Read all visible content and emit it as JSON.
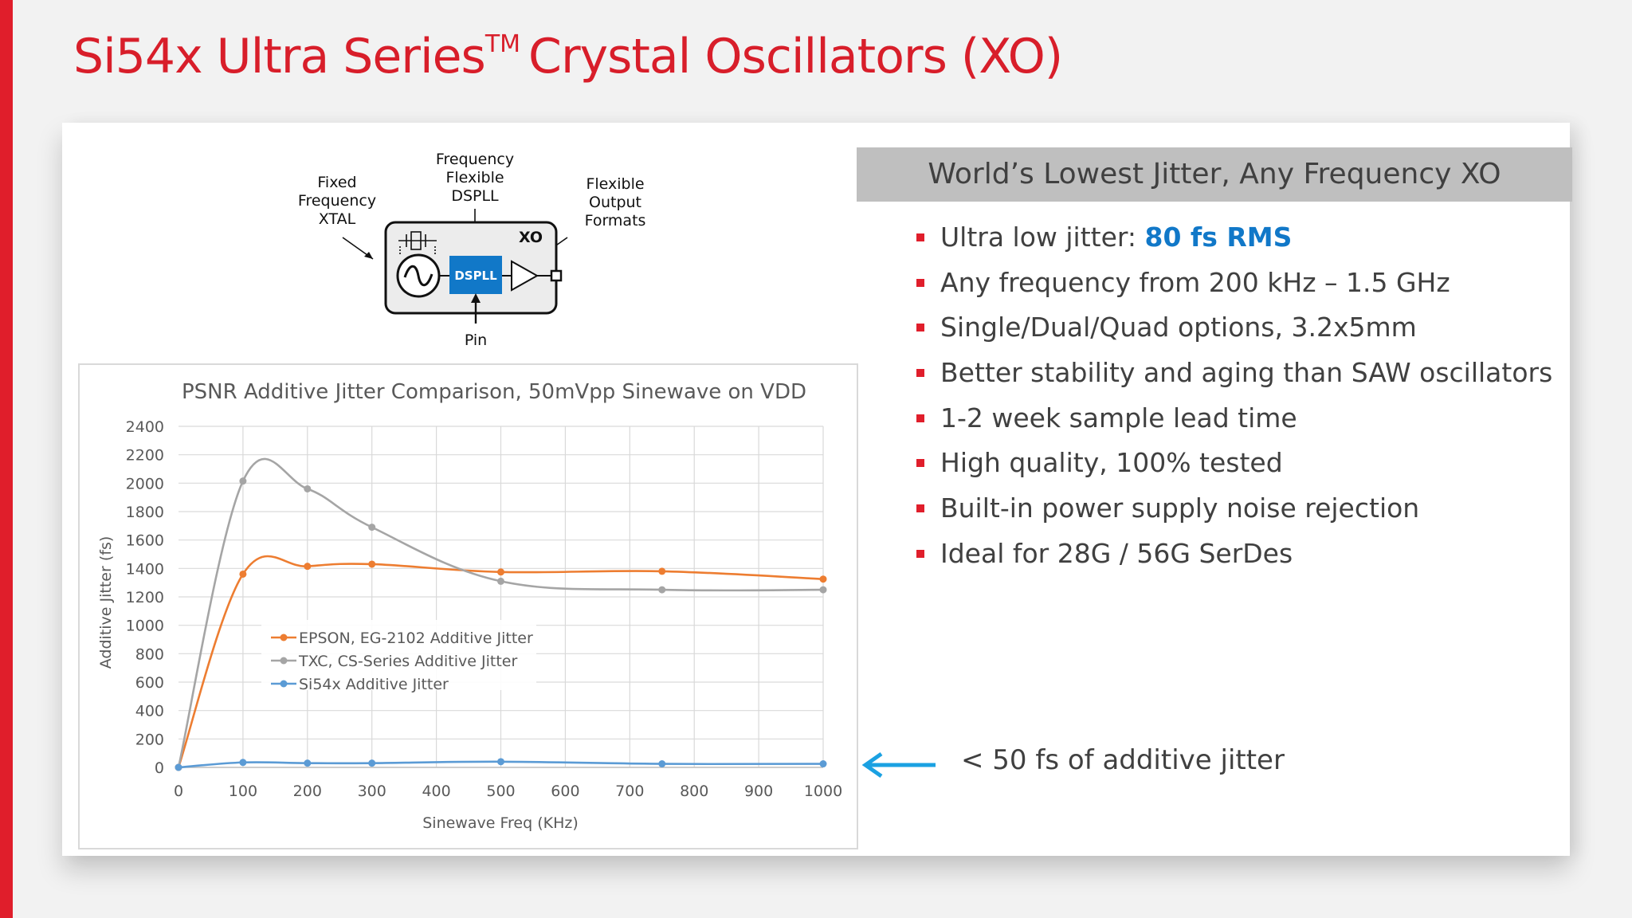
{
  "slide": {
    "title_main": "Si54x Ultra Series",
    "title_tm": "TM",
    "title_rest": "Crystal Oscillators (XO)"
  },
  "block_diagram": {
    "label_fixed": "Fixed\nFrequency\nXTAL",
    "label_dspll_top": "Frequency\nFlexible\nDSPLL",
    "label_output": "Flexible\nOutput\nFormats",
    "label_pin": "Pin",
    "label_xo": "XO",
    "label_dspll": "DSPLL"
  },
  "chart_data": {
    "type": "line",
    "title": "PSNR Additive Jitter Comparison, 50mVpp Sinewave on VDD",
    "xlabel": "Sinewave Freq (KHz)",
    "ylabel": "Additive Jitter (fs)",
    "xlim": [
      0,
      1000
    ],
    "ylim": [
      0,
      2400
    ],
    "x_ticks": [
      0,
      100,
      200,
      300,
      400,
      500,
      600,
      700,
      800,
      900,
      1000
    ],
    "y_ticks": [
      0,
      200,
      400,
      600,
      800,
      1000,
      1200,
      1400,
      1600,
      1800,
      2000,
      2200,
      2400
    ],
    "grid": true,
    "legend_position": "inside-left",
    "smooth": true,
    "series": [
      {
        "name": "EPSON, EG-2102 Additive Jitter",
        "color": "#ed7d31",
        "points": [
          [
            0,
            0
          ],
          [
            100,
            1360
          ],
          [
            200,
            1415
          ],
          [
            300,
            1430
          ],
          [
            500,
            1375
          ],
          [
            750,
            1380
          ],
          [
            1000,
            1325
          ]
        ]
      },
      {
        "name": "TXC, CS-Series Additive Jitter",
        "color": "#a5a5a5",
        "points": [
          [
            0,
            0
          ],
          [
            100,
            2015
          ],
          [
            200,
            1960
          ],
          [
            300,
            1690
          ],
          [
            500,
            1310
          ],
          [
            750,
            1250
          ],
          [
            1000,
            1250
          ]
        ]
      },
      {
        "name": "Si54x Additive Jitter",
        "color": "#5b9bd5",
        "points": [
          [
            0,
            0
          ],
          [
            100,
            35
          ],
          [
            200,
            30
          ],
          [
            300,
            30
          ],
          [
            500,
            40
          ],
          [
            750,
            25
          ],
          [
            1000,
            25
          ]
        ]
      }
    ]
  },
  "info": {
    "header": "World’s Lowest Jitter, Any Frequency XO",
    "bullets": [
      {
        "text": "Ultra low jitter: ",
        "highlight": "80 fs RMS"
      },
      {
        "text": "Any frequency from 200 kHz – 1.5 GHz"
      },
      {
        "text": "Single/Dual/Quad options, 3.2x5mm"
      },
      {
        "text": "Better stability and aging than SAW oscillators"
      },
      {
        "text": "1-2 week sample lead time"
      },
      {
        "text": "High quality, 100% tested"
      },
      {
        "text": "Built-in power supply noise rejection"
      },
      {
        "text": "Ideal for 28G / 56G SerDes"
      }
    ],
    "note": "< 50 fs of additive jitter",
    "accent_color": "#e01e2b",
    "highlight_color": "#1178c8",
    "arrow_color": "#1ba1e2"
  }
}
